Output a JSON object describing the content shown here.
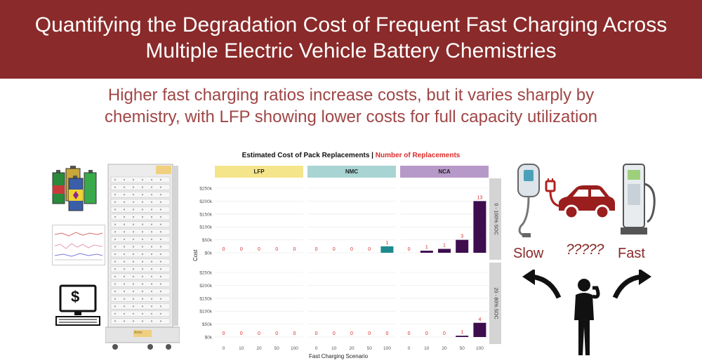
{
  "header": {
    "title_line1": "Quantifying the Degradation Cost of Frequent Fast Charging Across",
    "title_line2": "Multiple Electric Vehicle Battery Chemistries"
  },
  "subtitle": {
    "line1": "Higher fast charging ratios increase costs, but it varies sharply by",
    "line2": "chemistry, with LFP showing lower costs for full capacity utilization"
  },
  "colors": {
    "banner": "#8a2a2a",
    "lfp_strip": "#f4e58a",
    "nmc_strip": "#a8d4d4",
    "nca_strip": "#b799c9",
    "nmc_bar": "#1e8a8e",
    "nca_bar": "#3d0d4e",
    "label_red": "#d92c2c"
  },
  "chart_data": {
    "type": "bar",
    "title_part1": "Estimated Cost of Pack Replacements |",
    "title_part2": "Number of Replacements",
    "xlabel": "Fast Charging Scenario",
    "ylabel": "Cost",
    "facets": [
      "LFP",
      "NMC",
      "NCA"
    ],
    "rows": [
      "0 - 100% SOC",
      "20 - 80% SOC"
    ],
    "categories": [
      "0",
      "10",
      "20",
      "50",
      "100"
    ],
    "yticks": [
      "$0k",
      "$50k",
      "$100k",
      "$150k",
      "$200k",
      "$250k"
    ],
    "ylim": [
      0,
      250
    ],
    "panels": [
      {
        "row": "0 - 100% SOC",
        "facet": "LFP",
        "values": [
          0,
          0,
          0,
          0,
          0
        ],
        "replacements": [
          "0",
          "0",
          "0",
          "0",
          "0"
        ]
      },
      {
        "row": "0 - 100% SOC",
        "facet": "NMC",
        "values": [
          0,
          0,
          0,
          0,
          25
        ],
        "replacements": [
          "0",
          "0",
          "0",
          "0",
          "1"
        ]
      },
      {
        "row": "0 - 100% SOC",
        "facet": "NCA",
        "values": [
          0,
          8,
          15,
          50,
          200
        ],
        "replacements": [
          "0",
          "1",
          "1",
          "3",
          "13"
        ]
      },
      {
        "row": "20 - 80% SOC",
        "facet": "LFP",
        "values": [
          0,
          0,
          0,
          0,
          0
        ],
        "replacements": [
          "0",
          "0",
          "0",
          "0",
          "0"
        ]
      },
      {
        "row": "20 - 80% SOC",
        "facet": "NMC",
        "values": [
          0,
          0,
          0,
          0,
          0
        ],
        "replacements": [
          "0",
          "0",
          "0",
          "0",
          "0"
        ]
      },
      {
        "row": "20 - 80% SOC",
        "facet": "NCA",
        "values": [
          0,
          0,
          0,
          5,
          55
        ],
        "replacements": [
          "0",
          "0",
          "0",
          "1",
          "4"
        ]
      }
    ]
  },
  "right_panel": {
    "slow_label": "Slow",
    "fast_label": "Fast",
    "question_marks": "?????"
  },
  "left_panel": {
    "dollar_symbol": "$",
    "cycler_brand": "Arbin"
  }
}
